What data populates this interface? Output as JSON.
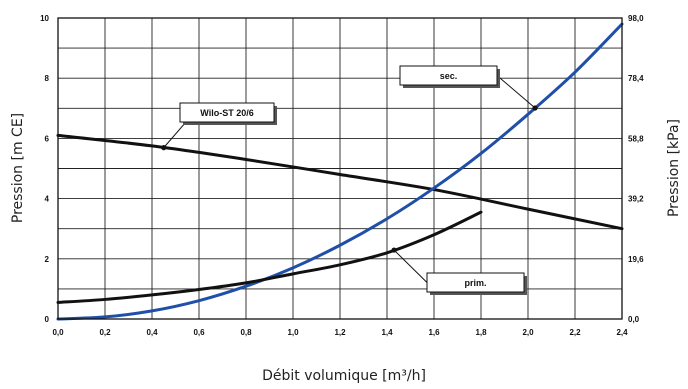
{
  "chart_data": {
    "type": "line",
    "xlabel": "Débit volumique [m³/h]",
    "ylabel_left": "Pression [m CE]",
    "ylabel_right": "Pression [kPa]",
    "xlim": [
      0,
      2.4
    ],
    "ylim_left": [
      0,
      10
    ],
    "ylim_right": [
      0,
      98
    ],
    "x_ticks": [
      "0,0",
      "0,2",
      "0,4",
      "0,6",
      "0,8",
      "1,0",
      "1,2",
      "1,4",
      "1,6",
      "1,8",
      "2,0",
      "2,2",
      "2,4"
    ],
    "y_ticks_left": [
      "0",
      "2",
      "4",
      "6",
      "8",
      "10"
    ],
    "y_ticks_right": [
      "0,0",
      "19,6",
      "39,2",
      "58,8",
      "78,4",
      "98,0"
    ],
    "grid": true,
    "series": [
      {
        "name": "Wilo-ST 20/6",
        "color": "#111111",
        "x": [
          0,
          0.4,
          0.8,
          1.2,
          1.6,
          2.0,
          2.4
        ],
        "y": [
          6.1,
          5.75,
          5.3,
          4.8,
          4.3,
          3.65,
          3.0
        ]
      },
      {
        "name": "sec.",
        "color": "#1f4fa8",
        "x": [
          0,
          0.2,
          0.4,
          0.6,
          0.8,
          1.0,
          1.2,
          1.4,
          1.6,
          1.8,
          2.0,
          2.2,
          2.4
        ],
        "y": [
          0,
          0.07,
          0.27,
          0.61,
          1.09,
          1.7,
          2.45,
          3.33,
          4.35,
          5.5,
          6.8,
          8.2,
          9.8
        ]
      },
      {
        "name": "prim.",
        "color": "#111111",
        "x": [
          0,
          0.2,
          0.4,
          0.6,
          0.8,
          1.0,
          1.2,
          1.4,
          1.6,
          1.8
        ],
        "y": [
          0.55,
          0.65,
          0.8,
          0.98,
          1.2,
          1.5,
          1.8,
          2.2,
          2.8,
          3.55
        ]
      }
    ],
    "annotations": [
      {
        "text": "Wilo-ST 20/6",
        "series": "Wilo-ST 20/6",
        "x": 0.45
      },
      {
        "text": "sec.",
        "series": "sec.",
        "x": 2.03
      },
      {
        "text": "prim.",
        "series": "prim.",
        "x": 1.43
      }
    ]
  }
}
